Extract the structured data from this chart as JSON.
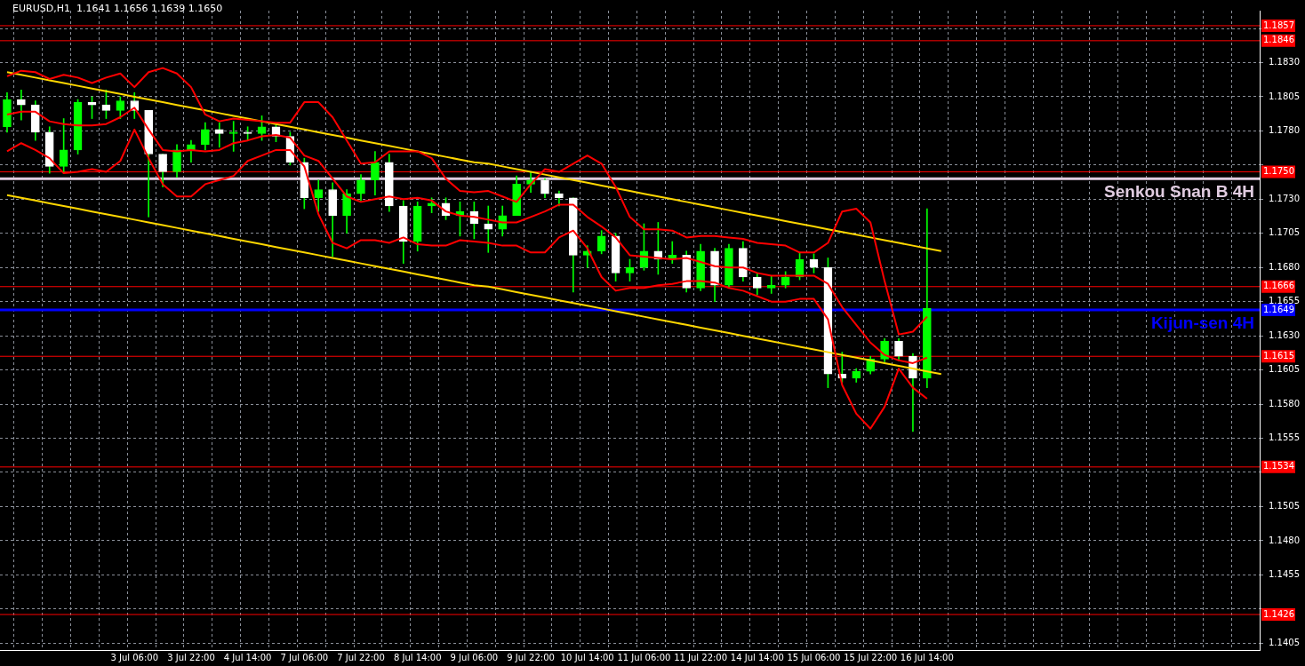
{
  "chart_data": {
    "type": "candlestick",
    "title": "EURUSD,H1  1.1641 1.1656 1.1639 1.1650",
    "color": "#00ff00",
    "grid": true,
    "colors": [
      "#00ff00",
      "#ffffff",
      "#ffffff",
      "#ffffff",
      "#00ff00",
      "#00ff00",
      "#ffffff",
      "#ffffff",
      "#00ff00",
      "#ffffff",
      "#ffffff",
      "#ffffff",
      "#00ff00",
      "#00ff00",
      "#00ff00",
      "#ffffff",
      "#00ff00",
      "#ffffff",
      "#00ff00",
      "#ffffff",
      "#ffffff",
      "#ffffff",
      "#00ff00",
      "#ffffff",
      "#00ff00",
      "#00ff00",
      "#00ff00",
      "#ffffff",
      "#ffffff",
      "#00ff00",
      "#00ff00",
      "#ffffff",
      "#00ff00",
      "#ffffff",
      "#ffffff",
      "#00ff00",
      "#00ff00",
      "#00ff00",
      "#ffffff",
      "#ffffff",
      "#ffffff",
      "#00ff00",
      "#00ff00",
      "#ffffff",
      "#00ff00",
      "#00ff00",
      "#ffffff",
      "#00ff00",
      "#ffffff",
      "#00ff00",
      "#ffffff",
      "#00ff00",
      "#ffffff",
      "#ffffff",
      "#00ff00",
      "#00ff00",
      "#00ff00",
      "#ffffff",
      "#ffffff",
      "#ffffff",
      "#00ff00",
      "#00ff00",
      "#00ff00",
      "#ffffff",
      "#ffffff",
      "#00ff00",
      null,
      null,
      null,
      null,
      null,
      null,
      null,
      null,
      null,
      null,
      null,
      null,
      null,
      null,
      null,
      null,
      null,
      null,
      null,
      null,
      null,
      null,
      null
    ],
    "categories": [
      null,
      null,
      null,
      null,
      null,
      null,
      null,
      null,
      null,
      "3 Jul 06:00",
      null,
      null,
      null,
      "3 Jul 22:00",
      null,
      null,
      null,
      "4 Jul 14:00",
      null,
      null,
      null,
      "7 Jul 06:00",
      null,
      null,
      null,
      "7 Jul 22:00",
      null,
      null,
      null,
      "8 Jul 14:00",
      null,
      null,
      null,
      "9 Jul 06:00",
      null,
      null,
      null,
      "9 Jul 22:00",
      null,
      null,
      null,
      "10 Jul 14:00",
      null,
      null,
      null,
      "11 Jul 06:00",
      null,
      null,
      null,
      "11 Jul 22:00",
      null,
      null,
      null,
      "14 Jul 14:00",
      null,
      null,
      null,
      "15 Jul 06:00",
      null,
      null,
      null,
      "15 Jul 22:00",
      null,
      null,
      null,
      "16 Jul 14:00",
      null,
      null,
      null,
      null,
      null,
      null,
      null,
      null,
      null,
      null,
      null,
      null,
      null,
      null,
      null,
      null,
      null,
      null,
      null,
      null,
      null,
      null,
      null
    ],
    "ohlc": [
      [
        1.1783,
        1.1808,
        1.1779,
        1.1803
      ],
      [
        1.1803,
        1.181,
        1.1788,
        1.1799
      ],
      [
        1.1799,
        1.1802,
        1.1773,
        1.1779
      ],
      [
        1.1779,
        1.1783,
        1.1749,
        1.1754
      ],
      [
        1.1754,
        1.1789,
        1.1749,
        1.1766
      ],
      [
        1.1766,
        1.1803,
        1.1763,
        1.1801
      ],
      [
        1.1801,
        1.1805,
        1.1789,
        1.1799
      ],
      [
        1.1799,
        1.181,
        1.1789,
        1.1795
      ],
      [
        1.1795,
        1.1805,
        1.1789,
        1.1802
      ],
      [
        1.1802,
        1.1808,
        1.1789,
        1.1795
      ],
      [
        1.1795,
        1.1795,
        1.1717,
        1.1763
      ],
      [
        1.1763,
        1.1763,
        1.1739,
        1.175
      ],
      [
        1.175,
        1.177,
        1.1746,
        1.1766
      ],
      [
        1.1766,
        1.1773,
        1.1757,
        1.177
      ],
      [
        1.177,
        1.1786,
        1.1766,
        1.1781
      ],
      [
        1.1781,
        1.1786,
        1.1768,
        1.1778
      ],
      [
        1.1778,
        1.1787,
        1.1765,
        1.1779
      ],
      [
        1.1779,
        1.1783,
        1.1773,
        1.1778
      ],
      [
        1.1778,
        1.1791,
        1.1773,
        1.1783
      ],
      [
        1.1783,
        1.1786,
        1.1772,
        1.1776
      ],
      [
        1.1776,
        1.1779,
        1.1755,
        1.1757
      ],
      [
        1.1757,
        1.176,
        1.1723,
        1.1731
      ],
      [
        1.1731,
        1.1744,
        1.1721,
        1.1737
      ],
      [
        1.1737,
        1.1742,
        1.1688,
        1.1718
      ],
      [
        1.1718,
        1.1737,
        1.1705,
        1.1734
      ],
      [
        1.1734,
        1.1748,
        1.1729,
        1.1744
      ],
      [
        1.1744,
        1.1765,
        1.1733,
        1.1757
      ],
      [
        1.1757,
        1.1763,
        1.1721,
        1.1725
      ],
      [
        1.1725,
        1.1729,
        1.1683,
        1.1699
      ],
      [
        1.1699,
        1.1728,
        1.1692,
        1.1725
      ],
      [
        1.1725,
        1.1731,
        1.172,
        1.1727
      ],
      [
        1.1727,
        1.1731,
        1.1715,
        1.1718
      ],
      [
        1.1718,
        1.1728,
        1.1703,
        1.1721
      ],
      [
        1.1721,
        1.1728,
        1.1701,
        1.1712
      ],
      [
        1.1712,
        1.1725,
        1.1691,
        1.1708
      ],
      [
        1.1708,
        1.1725,
        1.1703,
        1.1718
      ],
      [
        1.1718,
        1.1747,
        1.1718,
        1.1741
      ],
      [
        1.1741,
        1.175,
        1.1735,
        1.1744
      ],
      [
        1.1744,
        1.1745,
        1.1731,
        1.1734
      ],
      [
        1.1734,
        1.1736,
        1.1725,
        1.1731
      ],
      [
        1.1731,
        1.1731,
        1.1662,
        1.1689
      ],
      [
        1.1689,
        1.1696,
        1.168,
        1.1692
      ],
      [
        1.1692,
        1.1707,
        1.169,
        1.1703
      ],
      [
        1.1703,
        1.1705,
        1.167,
        1.1676
      ],
      [
        1.1676,
        1.1686,
        1.167,
        1.168
      ],
      [
        1.168,
        1.1712,
        1.1678,
        1.1692
      ],
      [
        1.1692,
        1.1713,
        1.1675,
        1.1686
      ],
      [
        1.1686,
        1.1699,
        1.1683,
        1.1689
      ],
      [
        1.1689,
        1.1692,
        1.1662,
        1.1665
      ],
      [
        1.1665,
        1.1697,
        1.1663,
        1.1692
      ],
      [
        1.1692,
        1.1694,
        1.1655,
        1.1667
      ],
      [
        1.1667,
        1.1697,
        1.1665,
        1.1694
      ],
      [
        1.1694,
        1.1699,
        1.167,
        1.1673
      ],
      [
        1.1673,
        1.1676,
        1.166,
        1.1665
      ],
      [
        1.1665,
        1.1674,
        1.1661,
        1.1667
      ],
      [
        1.1667,
        1.1677,
        1.1665,
        1.1673
      ],
      [
        1.1673,
        1.1691,
        1.1671,
        1.1686
      ],
      [
        1.1686,
        1.169,
        1.1676,
        1.168
      ],
      [
        1.168,
        1.1687,
        1.1592,
        1.1602
      ],
      [
        1.1602,
        1.1618,
        1.1596,
        1.1599
      ],
      [
        1.1599,
        1.1606,
        1.1596,
        1.1604
      ],
      [
        1.1604,
        1.1615,
        1.1602,
        1.1613
      ],
      [
        1.1613,
        1.1628,
        1.1611,
        1.1626
      ],
      [
        1.1626,
        1.1628,
        1.1612,
        1.1615
      ],
      [
        1.1615,
        1.1617,
        1.156,
        1.1599
      ],
      [
        1.1599,
        1.1723,
        1.1592,
        1.165
      ],
      null,
      null,
      null,
      null,
      null,
      null,
      null,
      null,
      null,
      null,
      null,
      null,
      null,
      null,
      null,
      null,
      null,
      null,
      null,
      null,
      null,
      null,
      null
    ],
    "series": [
      {
        "type": "line",
        "color": "#ff0000",
        "values": [
          1.182,
          1.1824,
          1.1823,
          1.1818,
          1.1821,
          1.1819,
          1.1815,
          1.1819,
          1.1822,
          1.1812,
          1.1823,
          1.1826,
          1.1822,
          1.1812,
          1.1792,
          1.1787,
          1.1789,
          1.1788,
          1.1787,
          1.1786,
          1.1786,
          1.1801,
          1.1801,
          1.179,
          1.1773,
          1.1756,
          1.1757,
          1.1765,
          1.1765,
          1.1765,
          1.176,
          1.1745,
          1.1736,
          1.1735,
          1.1736,
          1.1732,
          1.1728,
          1.1741,
          1.1752,
          1.175,
          1.1756,
          1.1762,
          1.1756,
          1.1739,
          1.1717,
          1.1708,
          1.1708,
          1.1707,
          1.1702,
          1.1703,
          1.1703,
          1.1702,
          1.1701,
          1.1698,
          1.1697,
          1.1696,
          1.1691,
          1.1691,
          1.1698,
          1.1721,
          1.1723,
          1.1713,
          1.167,
          1.1631,
          1.1633,
          1.1644,
          null,
          null,
          null,
          null,
          null,
          null,
          null,
          null,
          null,
          null,
          null,
          null,
          null,
          null,
          null,
          null,
          null,
          null,
          null,
          null,
          null,
          null,
          null
        ]
      },
      {
        "type": "line",
        "color": "#ff0000",
        "values": [
          1.1792,
          1.1794,
          1.1794,
          1.1787,
          1.1785,
          1.1784,
          1.1784,
          1.1785,
          1.179,
          1.1797,
          1.1781,
          1.1766,
          1.1765,
          1.1766,
          1.1765,
          1.1766,
          1.1771,
          1.1773,
          1.1776,
          1.1777,
          1.1775,
          1.1762,
          1.1758,
          1.1745,
          1.1732,
          1.1728,
          1.173,
          1.1732,
          1.173,
          1.1731,
          1.1729,
          1.1721,
          1.1718,
          1.1717,
          1.1715,
          1.1713,
          1.1713,
          1.1717,
          1.1721,
          1.1726,
          1.1726,
          1.1717,
          1.171,
          1.1702,
          1.1689,
          1.1688,
          1.1687,
          1.1686,
          1.1687,
          1.1684,
          1.1681,
          1.168,
          1.168,
          1.1676,
          1.1674,
          1.1674,
          1.1674,
          1.1674,
          1.1668,
          1.1651,
          1.1638,
          1.1625,
          1.1616,
          1.1612,
          1.161,
          1.1614,
          null,
          null,
          null,
          null,
          null,
          null,
          null,
          null,
          null,
          null,
          null,
          null,
          null,
          null,
          null,
          null,
          null,
          null,
          null,
          null,
          null,
          null,
          null
        ]
      },
      {
        "type": "line",
        "color": "#ff0000",
        "values": [
          1.1765,
          1.1771,
          1.1766,
          1.176,
          1.1749,
          1.175,
          1.1752,
          1.175,
          1.1758,
          1.1781,
          1.176,
          1.1741,
          1.1732,
          1.1732,
          1.1741,
          1.1744,
          1.1747,
          1.1758,
          1.1762,
          1.1766,
          1.1766,
          1.1754,
          1.1719,
          1.1698,
          1.1694,
          1.17,
          1.17,
          1.1698,
          1.1702,
          1.1697,
          1.1696,
          1.1696,
          1.17,
          1.1699,
          1.1698,
          1.1696,
          1.1696,
          1.1691,
          1.1691,
          1.1702,
          1.1707,
          1.1694,
          1.1673,
          1.1663,
          1.1665,
          1.1665,
          1.1667,
          1.1668,
          1.167,
          1.167,
          1.1669,
          1.1665,
          1.1663,
          1.1659,
          1.1655,
          1.1655,
          1.1657,
          1.1657,
          1.1642,
          1.1594,
          1.1573,
          1.1562,
          1.1578,
          1.1606,
          1.1592,
          1.1584,
          null,
          null,
          null,
          null,
          null,
          null,
          null,
          null,
          null,
          null,
          null,
          null,
          null,
          null,
          null,
          null,
          null,
          null,
          null,
          null,
          null,
          null,
          null
        ]
      },
      {
        "type": "line",
        "color": "#ffd700",
        "values": [
          1.1823,
          1.1821,
          1.1819,
          1.1817,
          1.1815,
          1.1813,
          1.1811,
          1.1809,
          1.1807,
          1.1805,
          1.1803,
          1.1801,
          1.1799,
          1.1797,
          1.1795,
          1.1793,
          1.1791,
          1.1789,
          1.1787,
          1.1785,
          1.1783,
          1.1781,
          1.1779,
          1.1777,
          1.1775,
          1.1773,
          1.1771,
          1.1769,
          1.1767,
          1.1765,
          1.1763,
          1.1761,
          1.1759,
          1.1757,
          1.1756,
          1.1754,
          1.1752,
          1.175,
          1.1748,
          1.1746,
          1.1744,
          1.1742,
          1.174,
          1.1738,
          1.1736,
          1.1734,
          1.1732,
          1.173,
          1.1728,
          1.1726,
          1.1724,
          1.1722,
          1.172,
          1.1718,
          1.1716,
          1.1714,
          1.1712,
          1.171,
          1.1708,
          1.1706,
          1.1704,
          1.1702,
          1.17,
          1.1698,
          1.1696,
          1.1694,
          1.1692,
          null,
          null,
          null,
          null,
          null,
          null,
          null,
          null,
          null,
          null,
          null,
          null,
          null,
          null,
          null,
          null,
          null,
          null,
          null,
          null,
          null,
          null
        ]
      },
      {
        "type": "line",
        "color": "#ffd700",
        "values": [
          1.1733,
          1.1731,
          1.1729,
          1.1727,
          1.1725,
          1.1723,
          1.1721,
          1.1719,
          1.1717,
          1.1715,
          1.1713,
          1.1711,
          1.1709,
          1.1707,
          1.1705,
          1.1703,
          1.1701,
          1.1699,
          1.1697,
          1.1695,
          1.1693,
          1.1691,
          1.1689,
          1.1687,
          1.1685,
          1.1683,
          1.1681,
          1.1679,
          1.1677,
          1.1675,
          1.1673,
          1.1671,
          1.1669,
          1.1667,
          1.1666,
          1.1664,
          1.1662,
          1.166,
          1.1658,
          1.1656,
          1.1654,
          1.1652,
          1.165,
          1.1648,
          1.1646,
          1.1644,
          1.1642,
          1.164,
          1.1638,
          1.1636,
          1.1634,
          1.1632,
          1.163,
          1.1628,
          1.1626,
          1.1624,
          1.1622,
          1.162,
          1.1618,
          1.1616,
          1.1614,
          1.1612,
          1.161,
          1.1608,
          1.1606,
          1.1604,
          1.1602,
          null,
          null,
          null,
          null,
          null,
          null,
          null,
          null,
          null,
          null,
          null,
          null,
          null,
          null,
          null,
          null,
          null,
          null,
          null,
          null,
          null,
          null
        ]
      }
    ],
    "annotations": [
      {
        "text": "1.1857",
        "y": 1.1857
      },
      {
        "text": "1.1846",
        "y": 1.1846
      },
      {
        "text": "1.1750",
        "y": 1.175
      },
      {
        "text": "1.1666",
        "y": 1.1666
      },
      {
        "text": "1.1649",
        "y": 1.1649
      },
      {
        "text": "1.1615",
        "y": 1.1615
      },
      {
        "text": "1.1534",
        "y": 1.1534
      },
      {
        "text": "1.1426",
        "y": 1.1426
      }
    ],
    "ylim": [
      1.14,
      1.1868
    ],
    "yticks": [
      1.1405,
      {
        "value": 1.143,
        "label": null
      },
      1.1455,
      {
        "value": 1.148,
        "label": "1.1480"
      },
      1.1505,
      {
        "value": 1.153,
        "label": null
      },
      1.1555,
      {
        "value": 1.158,
        "label": "1.1580"
      },
      1.1605,
      {
        "value": 1.163,
        "label": "1.1630"
      },
      1.1655,
      {
        "value": 1.168,
        "label": "1.1680"
      },
      1.1705,
      {
        "value": 1.173,
        "label": "1.1730"
      },
      {
        "value": 1.1755,
        "label": null
      },
      {
        "value": 1.178,
        "label": "1.1780"
      },
      1.1805,
      {
        "value": 1.183,
        "label": "1.1830"
      },
      {
        "value": 1.1855,
        "label": null
      }
    ],
    "ref_lines": [
      {
        "axis": "y",
        "value": 1.1857,
        "color": "#ff0000"
      },
      {
        "axis": "y",
        "value": 1.1846,
        "color": "#ff0000"
      },
      {
        "axis": "y",
        "value": 1.1745,
        "label": "Senkou Snan B 4H",
        "color": "#e0cce0"
      },
      {
        "axis": "y",
        "value": 1.175,
        "color": "#ff0000"
      },
      {
        "axis": "y",
        "value": 1.1666,
        "color": "#ff0000"
      },
      {
        "axis": "y",
        "value": 1.1649,
        "label": "Kijun-sen 4H",
        "color": "#0000ff"
      },
      {
        "axis": "y",
        "value": 1.1615,
        "color": "#ff0000"
      },
      {
        "axis": "y",
        "value": 1.1534,
        "color": "#ff0000"
      },
      {
        "axis": "y",
        "value": 1.1426,
        "color": "#ff0000"
      }
    ]
  }
}
